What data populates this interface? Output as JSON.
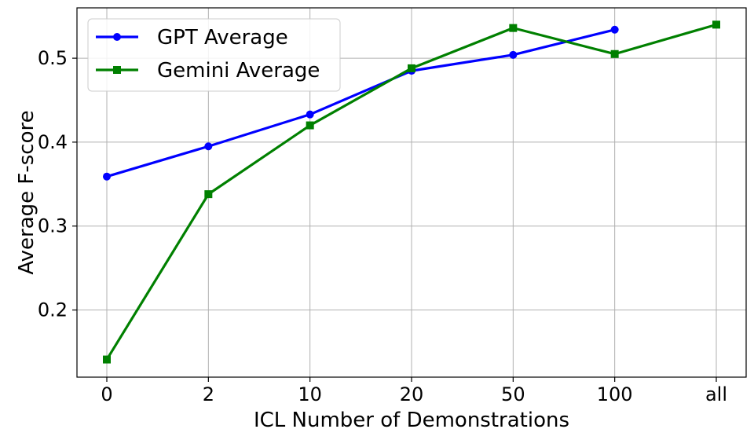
{
  "chart_data": {
    "type": "line",
    "title": "",
    "xlabel": "ICL Number of Demonstrations",
    "ylabel": "Average F-score",
    "categories": [
      "0",
      "2",
      "10",
      "20",
      "50",
      "100",
      "all"
    ],
    "ylim": [
      0.12,
      0.56
    ],
    "yticks": [
      "0.2",
      "0.3",
      "0.4",
      "0.5"
    ],
    "grid": true,
    "legend_position": "top-left",
    "series": [
      {
        "name": "GPT Average",
        "color": "#0000ff",
        "marker": "circle",
        "values": [
          0.359,
          0.395,
          0.433,
          0.485,
          0.504,
          0.534,
          null
        ]
      },
      {
        "name": "Gemini Average",
        "color": "#008000",
        "marker": "square",
        "values": [
          0.141,
          0.338,
          0.42,
          0.488,
          0.536,
          0.505,
          0.54
        ]
      }
    ]
  }
}
